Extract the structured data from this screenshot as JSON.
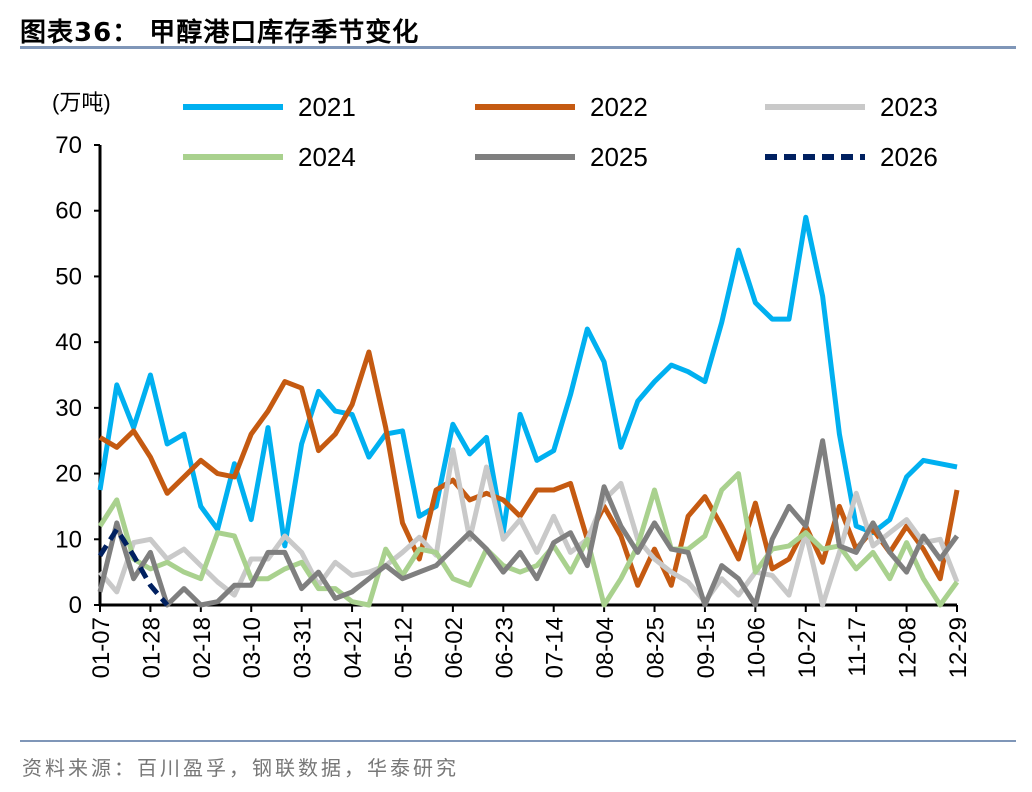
{
  "header": {
    "title": "图表36：  甲醇港口库存季节变化"
  },
  "source": "资料来源：百川盈孚，钢联数据，华泰研究",
  "chart_data": {
    "type": "line",
    "title": "甲醇港口库存季节变化",
    "ylabel": "(万吨)",
    "ylim": [
      0,
      70
    ],
    "yticks": [
      "0",
      "10",
      "20",
      "30",
      "40",
      "50",
      "60",
      "70"
    ],
    "xtick_labels": [
      "01-07",
      "01-28",
      "02-18",
      "03-10",
      "03-31",
      "04-21",
      "05-12",
      "06-02",
      "06-23",
      "07-14",
      "08-04",
      "08-25",
      "09-15",
      "10-06",
      "10-27",
      "11-17",
      "12-08",
      "12-29"
    ],
    "grid": false,
    "legend": "top",
    "series": [
      {
        "name": "2021",
        "color": "#00b0f0",
        "dash": false,
        "values": [
          17.5,
          33.5,
          27,
          35,
          24.5,
          26,
          15,
          11.5,
          21.5,
          13,
          27,
          9,
          24.5,
          32.5,
          29.5,
          29,
          22.5,
          26,
          26.5,
          13.5,
          15,
          27.5,
          23,
          25.5,
          11,
          29,
          22,
          23.5,
          32,
          42,
          37,
          24,
          31,
          34,
          36.5,
          35.5,
          34,
          43,
          54,
          46,
          43.5,
          43.5,
          59,
          47,
          26,
          12,
          11,
          13,
          19.5,
          22,
          21.5,
          21
        ]
      },
      {
        "name": "2022",
        "color": "#c55a11",
        "dash": false,
        "values": [
          25.5,
          24,
          26.5,
          22.5,
          17,
          19.5,
          22,
          20,
          19.5,
          26,
          29.5,
          34,
          33,
          23.5,
          26,
          30.5,
          38.5,
          27,
          12.5,
          7,
          17.5,
          19,
          16,
          17,
          16,
          13.5,
          17.5,
          17.5,
          18.5,
          10,
          15,
          10.5,
          3,
          8.5,
          3,
          13.5,
          16.5,
          12,
          7,
          15.5,
          5.5,
          7,
          12,
          6.5,
          15,
          8.5,
          11.5,
          8,
          12,
          8.5,
          4,
          17.5
        ]
      },
      {
        "name": "2023",
        "color": "#c9c9c9",
        "dash": false,
        "values": [
          5,
          2,
          9.5,
          10,
          7,
          8.5,
          6,
          3.5,
          1.5,
          7,
          7,
          10.5,
          8,
          3,
          6.5,
          4.5,
          5,
          6,
          8,
          10.3,
          7.6,
          23.6,
          10,
          21,
          10,
          13,
          8,
          13.5,
          8,
          10,
          16,
          18.5,
          10,
          7,
          5,
          3.5,
          0.5,
          4,
          1.5,
          5,
          4.5,
          1.5,
          11,
          0,
          8,
          17,
          9,
          11,
          13,
          9.5,
          10,
          3.5
        ]
      },
      {
        "name": "2024",
        "color": "#a9d18e",
        "dash": false,
        "values": [
          12,
          16,
          7,
          5.5,
          6.5,
          5,
          4,
          11,
          10.5,
          4,
          4,
          5.5,
          6.5,
          2.5,
          2.5,
          0.5,
          0,
          8.5,
          4.5,
          8.5,
          8,
          4,
          3,
          8.5,
          6,
          5,
          6,
          9,
          5,
          10,
          0,
          4,
          9,
          17.5,
          8.5,
          8.5,
          10.5,
          17.5,
          20,
          5,
          8.5,
          9,
          11,
          8.5,
          9,
          5.5,
          8,
          4,
          9.5,
          4,
          0,
          3.5
        ]
      },
      {
        "name": "2025",
        "color": "#7f7f7f",
        "dash": false,
        "values": [
          2,
          12.5,
          4,
          8,
          0,
          2.5,
          0,
          0.5,
          3,
          3,
          8,
          8,
          2.5,
          5,
          1,
          2,
          4,
          6,
          4,
          5,
          6,
          8.5,
          11,
          8.5,
          5,
          8,
          4,
          9.5,
          11,
          6,
          18,
          12,
          8,
          12.5,
          8.5,
          8,
          0,
          6,
          4,
          0,
          10,
          15,
          12,
          25,
          9,
          8,
          12.5,
          8,
          5,
          10.5,
          7,
          10.5
        ]
      },
      {
        "name": "2026",
        "color": "#002060",
        "dash": true,
        "values": [
          7.5,
          11.5,
          7.5,
          3,
          0
        ]
      }
    ]
  }
}
